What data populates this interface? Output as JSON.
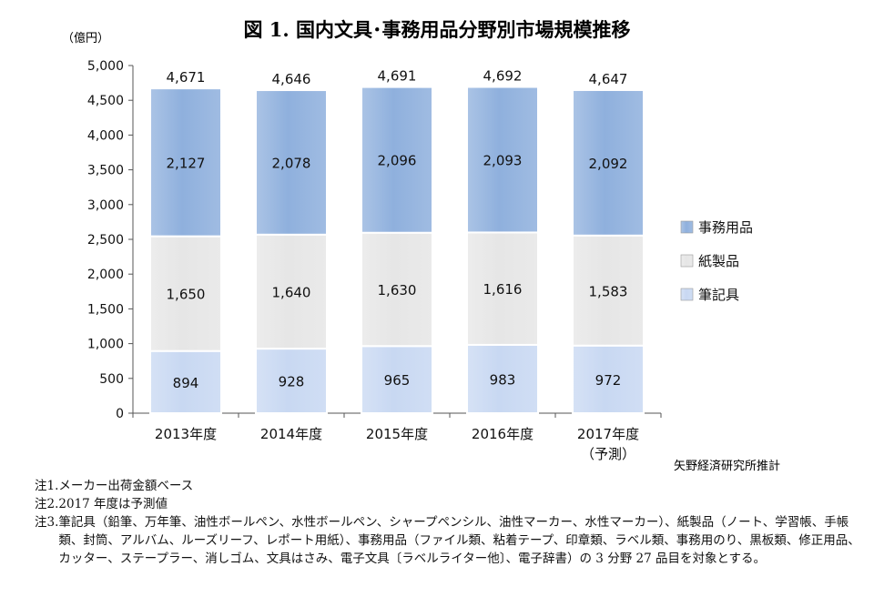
{
  "chart_data": {
    "type": "bar",
    "stacked": true,
    "title": "図 1. 国内文具･事務用品分野別市場規模推移",
    "unit_label": "（億円）",
    "categories": [
      "2013年度",
      "2014年度",
      "2015年度",
      "2016年度",
      "2017年度"
    ],
    "category_sublabels": [
      "",
      "",
      "",
      "",
      "（予測）"
    ],
    "series": [
      {
        "name": "筆記具",
        "values": [
          894,
          928,
          965,
          983,
          972
        ],
        "color": "#c8d8f2"
      },
      {
        "name": "紙製品",
        "values": [
          1650,
          1640,
          1630,
          1616,
          1583
        ],
        "color": "#e6e6e6"
      },
      {
        "name": "事務用品",
        "values": [
          2127,
          2078,
          2096,
          2093,
          2092
        ],
        "color": "#8fb0dd"
      }
    ],
    "totals": [
      4671,
      4646,
      4691,
      4692,
      4647
    ],
    "ylim": [
      0,
      5000
    ],
    "yticks": [
      0,
      500,
      1000,
      1500,
      2000,
      2500,
      3000,
      3500,
      4000,
      4500,
      5000
    ],
    "legend": [
      "事務用品",
      "紙製品",
      "筆記具"
    ],
    "legend_position": "right",
    "source": "矢野経済研究所推計",
    "grid": false
  },
  "notes": [
    {
      "label": "注1.",
      "text": "メーカー出荷金額ベース"
    },
    {
      "label": "注2.",
      "text": "2017 年度は予測値"
    },
    {
      "label": "注3.",
      "text": "筆記具（鉛筆、万年筆、油性ボールペン、水性ボールペン、シャープペンシル、油性マーカー、水性マーカー）、紙製品（ノート、学習帳、手帳類、封筒、アルバム、ルーズリーフ、レポート用紙）、事務用品（ファイル類、粘着テープ、印章類、ラベル類、事務用のり、黒板類、修正用品、カッター、ステープラー、消しゴム、文具はさみ、電子文具〔ラベルライター他〕、電子辞書）の 3 分野 27 品目を対象とする。"
    }
  ]
}
